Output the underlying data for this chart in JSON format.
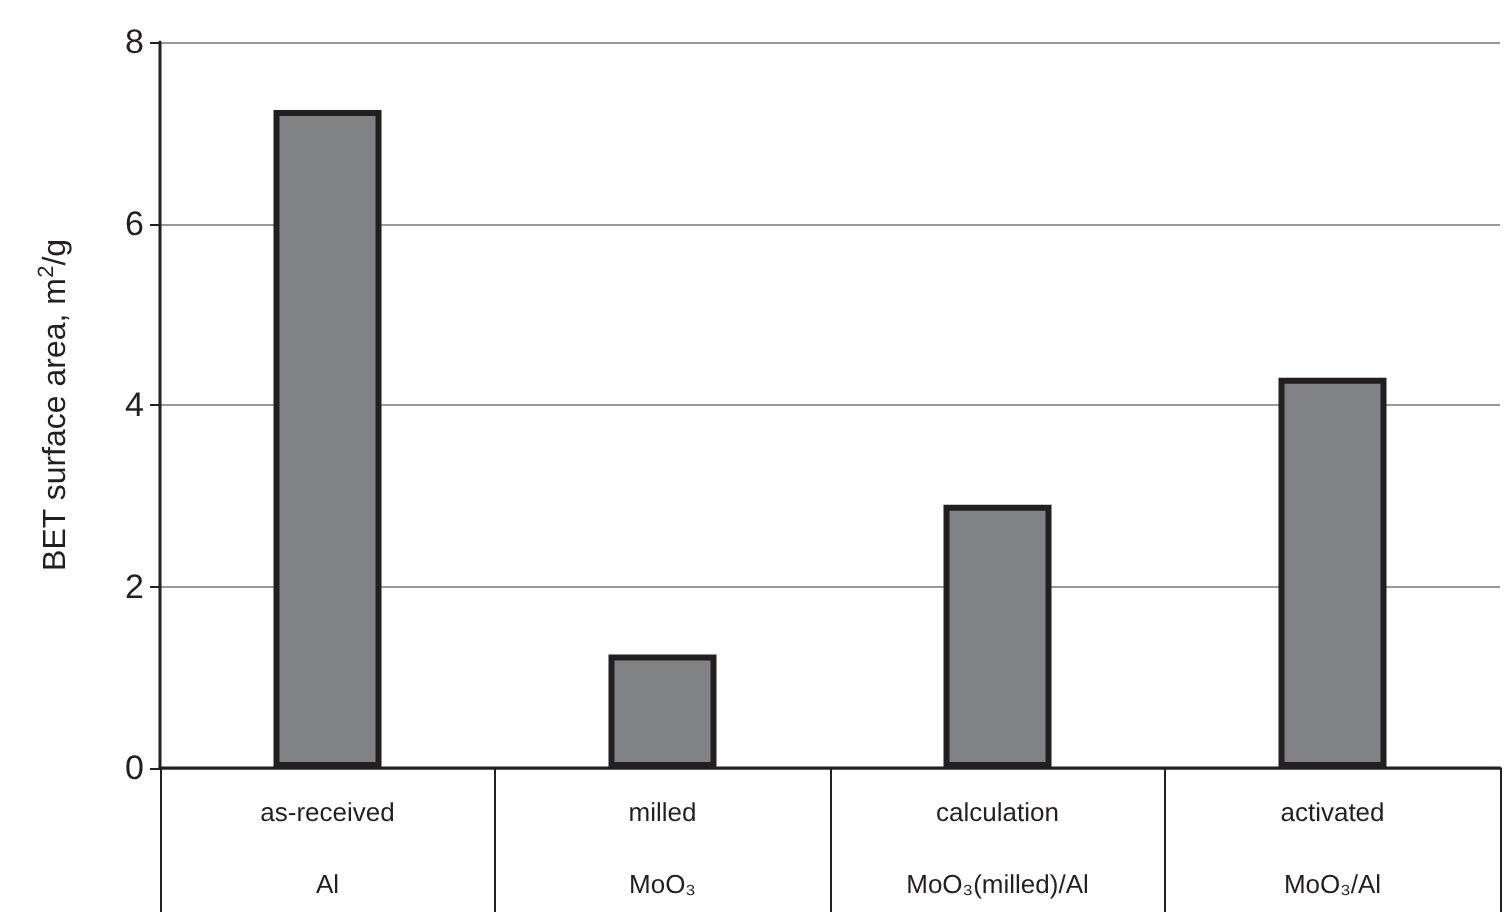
{
  "chart_data": {
    "type": "bar",
    "ylabel": "BET surface area, m$^{2}$/g",
    "categories": [
      "as-received\nAl",
      "milled\nMoO₃",
      "calculation\nMoO₃(milled)/Al",
      "activated\nMoO₃/Al"
    ],
    "values": [
      7.25,
      1.25,
      2.9,
      4.3
    ],
    "color": "#808285",
    "ylim": [
      0,
      8
    ],
    "yticks": [
      0,
      2,
      4,
      6,
      8
    ],
    "grid": "y"
  }
}
